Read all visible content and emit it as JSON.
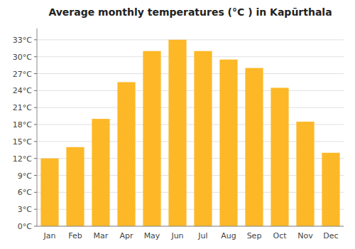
{
  "chart_data": {
    "type": "bar",
    "title": "Average monthly temperatures (°C ) in Kapūrthala",
    "categories": [
      "Jan",
      "Feb",
      "Mar",
      "Apr",
      "May",
      "Jun",
      "Jul",
      "Aug",
      "Sep",
      "Oct",
      "Nov",
      "Dec"
    ],
    "values": [
      12,
      14,
      19,
      25.5,
      31,
      33,
      31,
      29.5,
      28,
      24.5,
      18.5,
      13
    ],
    "color": "#FDB827",
    "ylim": [
      0,
      35
    ],
    "yticks": [
      {
        "value": 0,
        "label": "0°C"
      },
      {
        "value": 3,
        "label": "3°C"
      },
      {
        "value": 6,
        "label": "6°C"
      },
      {
        "value": 9,
        "label": "9°C"
      },
      {
        "value": 12,
        "label": "12°C"
      },
      {
        "value": 15,
        "label": "15°C"
      },
      {
        "value": 18,
        "label": "18°C"
      },
      {
        "value": 21,
        "label": "21°C"
      },
      {
        "value": 24,
        "label": "24°C"
      },
      {
        "value": 27,
        "label": "27°C"
      },
      {
        "value": 30,
        "label": "30°C"
      },
      {
        "value": 33,
        "label": "33°C"
      }
    ],
    "grid": true
  }
}
